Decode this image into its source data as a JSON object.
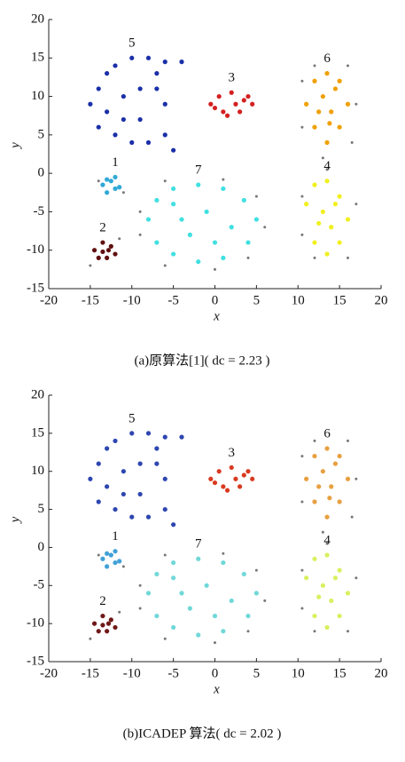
{
  "chart_data": [
    {
      "type": "scatter",
      "caption": "(a)原算法[1]( dc = 2.23 )",
      "xlabel": "x",
      "ylabel": "y",
      "xlim": [
        -20,
        20
      ],
      "xticks": [
        -20,
        -15,
        -10,
        -5,
        0,
        5,
        10,
        15,
        20
      ],
      "ylim": [
        -15,
        20
      ],
      "yticks": [
        -15,
        -10,
        -5,
        0,
        5,
        10,
        15,
        20
      ],
      "series": [
        {
          "name": "5",
          "color": "#1a2fa8",
          "x": [
            -14,
            -13,
            -12,
            -10,
            -8,
            -6,
            -4,
            -15,
            -13,
            -11,
            -9,
            -7,
            -6,
            -14,
            -12,
            -10,
            -8,
            -6,
            -5,
            -9,
            -11,
            -7
          ],
          "y": [
            11,
            13,
            14,
            15,
            15,
            14.5,
            14.5,
            9,
            8,
            10,
            11,
            11,
            9,
            6,
            5,
            4,
            4,
            5,
            3,
            7,
            7,
            13
          ]
        },
        {
          "name": "3",
          "color": "#d42020",
          "x": [
            -0.5,
            0.5,
            1,
            2,
            2.5,
            3.5,
            4.5,
            1.5,
            3,
            0,
            4
          ],
          "y": [
            9,
            10,
            8,
            10.5,
            9,
            9.5,
            9,
            7.5,
            8,
            8.5,
            10
          ]
        },
        {
          "name": "6",
          "color": "#f0a000",
          "x": [
            11,
            12,
            13.5,
            15,
            16,
            15,
            13.5,
            12,
            13,
            14,
            12.5,
            14.5,
            13.8
          ],
          "y": [
            9,
            12,
            13,
            12,
            9,
            6,
            4,
            6,
            10,
            8,
            8,
            11,
            6.5
          ]
        },
        {
          "name": "7",
          "color": "#40e0e0",
          "x": [
            -8,
            -7,
            -5,
            -2,
            1,
            3.5,
            5,
            4,
            1,
            -2,
            -5,
            -7,
            -4,
            -1,
            2,
            -3,
            0,
            -5
          ],
          "y": [
            -6,
            -3.5,
            -2,
            -1.5,
            -2,
            -3.5,
            -6,
            -9,
            -11,
            -11.5,
            -10.5,
            -9,
            -6,
            -5,
            -7,
            -8,
            -9,
            -4
          ]
        },
        {
          "name": "4",
          "color": "#f0f020",
          "x": [
            11,
            12,
            13.5,
            15,
            16,
            15,
            13.5,
            12,
            13,
            14,
            12.5,
            14.5
          ],
          "y": [
            -4,
            -1.5,
            -1,
            -3,
            -6,
            -9,
            -10.5,
            -9,
            -5,
            -7,
            -6.5,
            -4
          ]
        },
        {
          "name": "1",
          "color": "#30a8d8",
          "x": [
            -13.5,
            -12.5,
            -12,
            -13,
            -12,
            -11.5,
            -13
          ],
          "y": [
            -1.5,
            -1,
            -2,
            -2.5,
            -0.5,
            -1.8,
            -0.8
          ]
        },
        {
          "name": "2",
          "color": "#601010",
          "x": [
            -14.5,
            -13.5,
            -12.5,
            -12,
            -13,
            -14,
            -13.5,
            -12.8
          ],
          "y": [
            -10,
            -9,
            -9.5,
            -10.5,
            -11,
            -11,
            -10.2,
            -10
          ]
        },
        {
          "color": "#777777",
          "x": [
            -9,
            -9,
            -6,
            0,
            4,
            6,
            5,
            1,
            -6,
            10.5,
            12,
            16,
            17,
            16.5,
            10.5,
            13,
            13.5,
            10.5,
            17,
            16,
            12,
            10.5,
            -14,
            -11,
            -15,
            -11.5
          ],
          "y": [
            -5,
            -8,
            -12,
            -12.5,
            -11,
            -7,
            -3,
            -0.8,
            -1,
            12,
            14,
            14,
            9,
            4,
            6,
            2,
            0.5,
            -3,
            -4,
            -11,
            -11,
            -8,
            -1,
            -2.5,
            -12,
            -8.5
          ]
        }
      ]
    },
    {
      "type": "scatter",
      "caption": "(b)ICADEP 算法( dc = 2.02 )",
      "xlabel": "x",
      "ylabel": "y",
      "xlim": [
        -20,
        20
      ],
      "xticks": [
        -20,
        -15,
        -10,
        -5,
        0,
        5,
        10,
        15,
        20
      ],
      "ylim": [
        -15,
        20
      ],
      "yticks": [
        -15,
        -10,
        -5,
        0,
        5,
        10,
        15,
        20
      ],
      "series": [
        {
          "name": "5",
          "color": "#2d46b0",
          "x": [
            -14,
            -13,
            -12,
            -10,
            -8,
            -6,
            -4,
            -15,
            -13,
            -11,
            -9,
            -7,
            -6,
            -14,
            -12,
            -10,
            -8,
            -6,
            -5,
            -9,
            -11,
            -7
          ],
          "y": [
            11,
            13,
            14,
            15,
            15,
            14.5,
            14.5,
            9,
            8,
            10,
            11,
            11,
            9,
            6,
            5,
            4,
            4,
            5,
            3,
            7,
            7,
            13
          ]
        },
        {
          "name": "3",
          "color": "#d83a20",
          "x": [
            -0.5,
            0.5,
            1,
            2,
            2.5,
            3.5,
            4.5,
            1.5,
            3,
            0,
            4
          ],
          "y": [
            9,
            10,
            8,
            10.5,
            9,
            9.5,
            9,
            7.5,
            8,
            8.5,
            10
          ]
        },
        {
          "name": "6",
          "color": "#e8a040",
          "x": [
            11,
            12,
            13.5,
            15,
            16,
            15,
            13.5,
            12,
            13,
            14,
            12.5,
            14.5,
            13.8
          ],
          "y": [
            9,
            12,
            13,
            12,
            9,
            6,
            4,
            6,
            10,
            8,
            8,
            11,
            6.5
          ]
        },
        {
          "name": "7",
          "color": "#70d8d8",
          "x": [
            -8,
            -7,
            -5,
            -2,
            1,
            3.5,
            5,
            4,
            1,
            -2,
            -5,
            -7,
            -4,
            -1,
            2,
            -3,
            0,
            -5
          ],
          "y": [
            -6,
            -3.5,
            -2,
            -1.5,
            -2,
            -3.5,
            -6,
            -9,
            -11,
            -11.5,
            -10.5,
            -9,
            -6,
            -5,
            -7,
            -8,
            -9,
            -4
          ]
        },
        {
          "name": "4",
          "color": "#d8f060",
          "x": [
            11,
            12,
            13.5,
            15,
            16,
            15,
            13.5,
            12,
            13,
            14,
            12.5,
            14.5
          ],
          "y": [
            -4,
            -1.5,
            -1,
            -3,
            -6,
            -9,
            -10.5,
            -9,
            -5,
            -7,
            -6.5,
            -4
          ]
        },
        {
          "name": "1",
          "color": "#40a0d8",
          "x": [
            -13.5,
            -12.5,
            -12,
            -13,
            -12,
            -11.5,
            -13
          ],
          "y": [
            -1.5,
            -1,
            -2,
            -2.5,
            -0.5,
            -1.8,
            -0.8
          ]
        },
        {
          "name": "2",
          "color": "#701818",
          "x": [
            -14.5,
            -13.5,
            -12.5,
            -12,
            -13,
            -14,
            -13.5,
            -12.8
          ],
          "y": [
            -10,
            -9,
            -9.5,
            -10.5,
            -11,
            -11,
            -10.2,
            -10
          ]
        },
        {
          "color": "#777777",
          "x": [
            -9,
            -9,
            -6,
            0,
            4,
            6,
            5,
            1,
            -6,
            10.5,
            12,
            16,
            17,
            16.5,
            10.5,
            13,
            13.5,
            10.5,
            17,
            16,
            12,
            10.5,
            -14,
            -11,
            -15,
            -11.5
          ],
          "y": [
            -5,
            -8,
            -12,
            -12.5,
            -11,
            -7,
            -3,
            -0.8,
            -1,
            12,
            14,
            14,
            9,
            4,
            6,
            2,
            0.5,
            -3,
            -4,
            -11,
            -11,
            -8,
            -1,
            -2.5,
            -12,
            -8.5
          ]
        }
      ]
    }
  ]
}
